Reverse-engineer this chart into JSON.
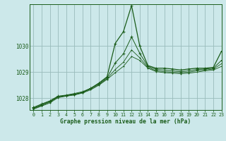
{
  "xlabel": "Graphe pression niveau de la mer (hPa)",
  "bg_color": "#cce8ea",
  "grid_color": "#99bbbb",
  "line_color": "#1a5c1a",
  "xlim": [
    -0.5,
    23
  ],
  "ylim": [
    1027.55,
    1031.6
  ],
  "yticks": [
    1028,
    1029,
    1030
  ],
  "xticks": [
    0,
    1,
    2,
    3,
    4,
    5,
    6,
    7,
    8,
    9,
    10,
    11,
    12,
    13,
    14,
    15,
    16,
    17,
    18,
    19,
    20,
    21,
    22,
    23
  ],
  "series": [
    [
      1027.62,
      1027.75,
      1027.88,
      1028.05,
      1028.1,
      1028.15,
      1028.22,
      1028.38,
      1028.58,
      1028.82,
      1030.1,
      1030.55,
      1031.55,
      1030.0,
      1029.25,
      1029.15,
      1029.15,
      1029.12,
      1029.08,
      1029.12,
      1029.15,
      1029.15,
      1029.18,
      1029.8
    ],
    [
      1027.65,
      1027.78,
      1027.9,
      1028.08,
      1028.12,
      1028.18,
      1028.25,
      1028.38,
      1028.55,
      1028.78,
      1029.35,
      1029.7,
      1030.35,
      1029.72,
      1029.22,
      1029.1,
      1029.08,
      1029.05,
      1029.02,
      1029.05,
      1029.1,
      1029.12,
      1029.15,
      1029.45
    ],
    [
      1027.6,
      1027.72,
      1027.85,
      1028.05,
      1028.1,
      1028.15,
      1028.22,
      1028.35,
      1028.52,
      1028.75,
      1029.1,
      1029.38,
      1029.85,
      1029.55,
      1029.18,
      1029.05,
      1029.02,
      1029.0,
      1028.98,
      1029.0,
      1029.05,
      1029.08,
      1029.12,
      1029.32
    ],
    [
      1027.58,
      1027.7,
      1027.82,
      1028.02,
      1028.08,
      1028.12,
      1028.2,
      1028.32,
      1028.5,
      1028.72,
      1028.98,
      1029.22,
      1029.6,
      1029.45,
      1029.15,
      1029.02,
      1028.98,
      1028.96,
      1028.94,
      1028.96,
      1029.0,
      1029.05,
      1029.08,
      1029.22
    ]
  ]
}
